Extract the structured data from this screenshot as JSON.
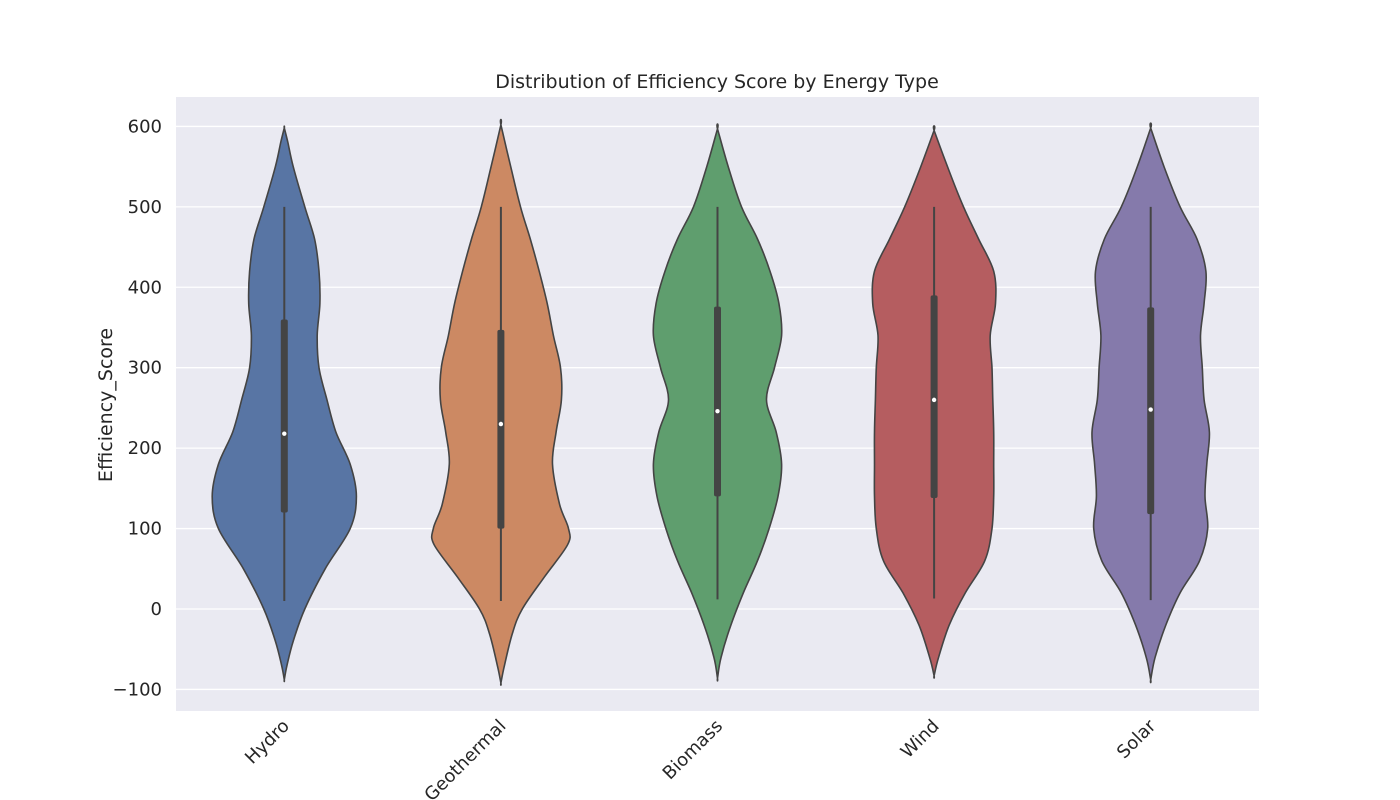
{
  "chart_data": {
    "type": "violin",
    "title": "Distribution of Efficiency Score by Energy Type",
    "xlabel": "",
    "ylabel": "Efficiency_Score",
    "ylim": [
      -100,
      600
    ],
    "yticks": [
      -100,
      0,
      100,
      200,
      300,
      400,
      500,
      600
    ],
    "ytick_labels": [
      "−100",
      "0",
      "100",
      "200",
      "300",
      "400",
      "500",
      "600"
    ],
    "grid": true,
    "background": "#eaeaf2",
    "categories": [
      "Hydro",
      "Geothermal",
      "Biomass",
      "Wind",
      "Solar"
    ],
    "colors": [
      "#5875a4",
      "#cc8963",
      "#5f9e6e",
      "#b55d60",
      "#857aab"
    ],
    "series": [
      {
        "category": "Hydro",
        "min": 10,
        "q1": 120,
        "median": 218,
        "q3": 360,
        "max": 500,
        "kde_range": [
          -88,
          598
        ],
        "density_profile": [
          [
            -88,
            0.0
          ],
          [
            -70,
            0.03
          ],
          [
            -40,
            0.1
          ],
          [
            0,
            0.23
          ],
          [
            50,
            0.46
          ],
          [
            100,
            0.74
          ],
          [
            140,
            0.81
          ],
          [
            180,
            0.74
          ],
          [
            220,
            0.58
          ],
          [
            260,
            0.48
          ],
          [
            300,
            0.39
          ],
          [
            340,
            0.37
          ],
          [
            380,
            0.4
          ],
          [
            420,
            0.39
          ],
          [
            460,
            0.34
          ],
          [
            500,
            0.23
          ],
          [
            550,
            0.1
          ],
          [
            580,
            0.04
          ],
          [
            598,
            0.0
          ]
        ]
      },
      {
        "category": "Geothermal",
        "min": 10,
        "q1": 100,
        "median": 230,
        "q3": 347,
        "max": 500,
        "kde_range": [
          -92,
          602
        ],
        "density_profile": [
          [
            -92,
            0.0
          ],
          [
            -70,
            0.04
          ],
          [
            -30,
            0.13
          ],
          [
            0,
            0.24
          ],
          [
            40,
            0.49
          ],
          [
            80,
            0.75
          ],
          [
            100,
            0.76
          ],
          [
            130,
            0.66
          ],
          [
            180,
            0.58
          ],
          [
            220,
            0.62
          ],
          [
            260,
            0.68
          ],
          [
            300,
            0.67
          ],
          [
            340,
            0.59
          ],
          [
            380,
            0.52
          ],
          [
            420,
            0.43
          ],
          [
            460,
            0.33
          ],
          [
            500,
            0.22
          ],
          [
            550,
            0.11
          ],
          [
            602,
            0.0
          ]
        ]
      },
      {
        "category": "Biomass",
        "min": 12,
        "q1": 140,
        "median": 246,
        "q3": 376,
        "max": 500,
        "kde_range": [
          -86,
          597
        ],
        "density_profile": [
          [
            -86,
            0.0
          ],
          [
            -60,
            0.04
          ],
          [
            -20,
            0.15
          ],
          [
            20,
            0.29
          ],
          [
            60,
            0.45
          ],
          [
            100,
            0.58
          ],
          [
            140,
            0.68
          ],
          [
            180,
            0.72
          ],
          [
            220,
            0.66
          ],
          [
            260,
            0.55
          ],
          [
            300,
            0.64
          ],
          [
            340,
            0.72
          ],
          [
            380,
            0.69
          ],
          [
            420,
            0.59
          ],
          [
            460,
            0.45
          ],
          [
            500,
            0.27
          ],
          [
            550,
            0.12
          ],
          [
            597,
            0.0
          ]
        ]
      },
      {
        "category": "Wind",
        "min": 13,
        "q1": 138,
        "median": 260,
        "q3": 390,
        "max": 500,
        "kde_range": [
          -83,
          595
        ],
        "density_profile": [
          [
            -83,
            0.0
          ],
          [
            -60,
            0.05
          ],
          [
            -20,
            0.17
          ],
          [
            20,
            0.35
          ],
          [
            60,
            0.57
          ],
          [
            100,
            0.65
          ],
          [
            140,
            0.67
          ],
          [
            180,
            0.67
          ],
          [
            220,
            0.67
          ],
          [
            260,
            0.66
          ],
          [
            300,
            0.65
          ],
          [
            340,
            0.63
          ],
          [
            380,
            0.69
          ],
          [
            420,
            0.67
          ],
          [
            460,
            0.5
          ],
          [
            500,
            0.33
          ],
          [
            550,
            0.15
          ],
          [
            595,
            0.0
          ]
        ]
      },
      {
        "category": "Solar",
        "min": 11,
        "q1": 118,
        "median": 248,
        "q3": 375,
        "max": 500,
        "kde_range": [
          -88,
          598
        ],
        "density_profile": [
          [
            -88,
            0.0
          ],
          [
            -60,
            0.05
          ],
          [
            -20,
            0.17
          ],
          [
            20,
            0.33
          ],
          [
            60,
            0.55
          ],
          [
            100,
            0.64
          ],
          [
            140,
            0.61
          ],
          [
            180,
            0.63
          ],
          [
            220,
            0.66
          ],
          [
            260,
            0.6
          ],
          [
            300,
            0.58
          ],
          [
            340,
            0.56
          ],
          [
            380,
            0.6
          ],
          [
            420,
            0.62
          ],
          [
            460,
            0.52
          ],
          [
            500,
            0.33
          ],
          [
            550,
            0.15
          ],
          [
            598,
            0.0
          ]
        ]
      }
    ]
  }
}
